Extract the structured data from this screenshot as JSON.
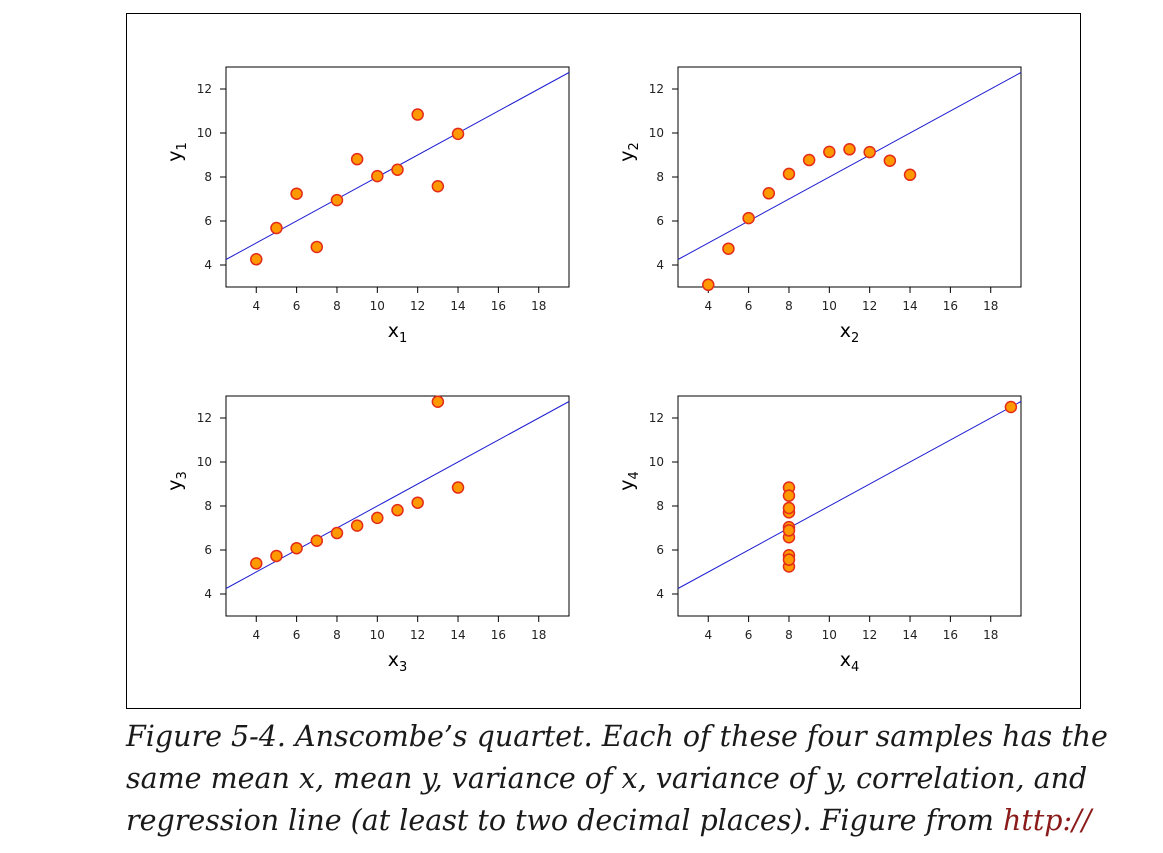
{
  "caption": {
    "text": "Figure 5-4. Anscombe’s quartet. Each of these four samples has the same mean x, mean y, variance of x, variance of y, correlation, and regression line (at least to two decimal places). Figure from ",
    "link": "http://"
  },
  "colors": {
    "point_fill": "#ff9900",
    "point_stroke": "#e32b1a",
    "regression_line": "#1e1ed2",
    "axis": "#000000"
  },
  "chart_data": [
    {
      "type": "scatter",
      "xlabel": "x",
      "xlabel_sub": "1",
      "ylabel": "y",
      "ylabel_sub": "1",
      "xticks": [
        4,
        6,
        8,
        10,
        12,
        14,
        16,
        18
      ],
      "yticks": [
        4,
        6,
        8,
        10,
        12
      ],
      "xlim": [
        2.5,
        19.5
      ],
      "ylim": [
        3,
        13
      ],
      "grid": false,
      "regression": {
        "intercept": 3.0,
        "slope": 0.5
      },
      "x": [
        10,
        8,
        13,
        9,
        11,
        14,
        6,
        4,
        12,
        7,
        5
      ],
      "y": [
        8.04,
        6.95,
        7.58,
        8.81,
        8.33,
        9.96,
        7.24,
        4.26,
        10.84,
        4.82,
        5.68
      ]
    },
    {
      "type": "scatter",
      "xlabel": "x",
      "xlabel_sub": "2",
      "ylabel": "y",
      "ylabel_sub": "2",
      "xticks": [
        4,
        6,
        8,
        10,
        12,
        14,
        16,
        18
      ],
      "yticks": [
        4,
        6,
        8,
        10,
        12
      ],
      "xlim": [
        2.5,
        19.5
      ],
      "ylim": [
        3,
        13
      ],
      "grid": false,
      "regression": {
        "intercept": 3.0,
        "slope": 0.5
      },
      "x": [
        10,
        8,
        13,
        9,
        11,
        14,
        6,
        4,
        12,
        7,
        5
      ],
      "y": [
        9.14,
        8.14,
        8.74,
        8.77,
        9.26,
        8.1,
        6.13,
        3.1,
        9.13,
        7.26,
        4.74
      ]
    },
    {
      "type": "scatter",
      "xlabel": "x",
      "xlabel_sub": "3",
      "ylabel": "y",
      "ylabel_sub": "3",
      "xticks": [
        4,
        6,
        8,
        10,
        12,
        14,
        16,
        18
      ],
      "yticks": [
        4,
        6,
        8,
        10,
        12
      ],
      "xlim": [
        2.5,
        19.5
      ],
      "ylim": [
        3,
        13
      ],
      "grid": false,
      "regression": {
        "intercept": 3.0,
        "slope": 0.5
      },
      "x": [
        10,
        8,
        13,
        9,
        11,
        14,
        6,
        4,
        12,
        7,
        5
      ],
      "y": [
        7.46,
        6.77,
        12.74,
        7.11,
        7.81,
        8.84,
        6.08,
        5.39,
        8.15,
        6.42,
        5.73
      ]
    },
    {
      "type": "scatter",
      "xlabel": "x",
      "xlabel_sub": "4",
      "ylabel": "y",
      "ylabel_sub": "4",
      "xticks": [
        4,
        6,
        8,
        10,
        12,
        14,
        16,
        18
      ],
      "yticks": [
        4,
        6,
        8,
        10,
        12
      ],
      "xlim": [
        2.5,
        19.5
      ],
      "ylim": [
        3,
        13
      ],
      "grid": false,
      "regression": {
        "intercept": 3.0,
        "slope": 0.5
      },
      "x": [
        8,
        8,
        8,
        8,
        8,
        8,
        8,
        19,
        8,
        8,
        8
      ],
      "y": [
        6.58,
        5.76,
        7.71,
        8.84,
        8.47,
        7.04,
        5.25,
        12.5,
        5.56,
        7.91,
        6.89
      ]
    }
  ]
}
